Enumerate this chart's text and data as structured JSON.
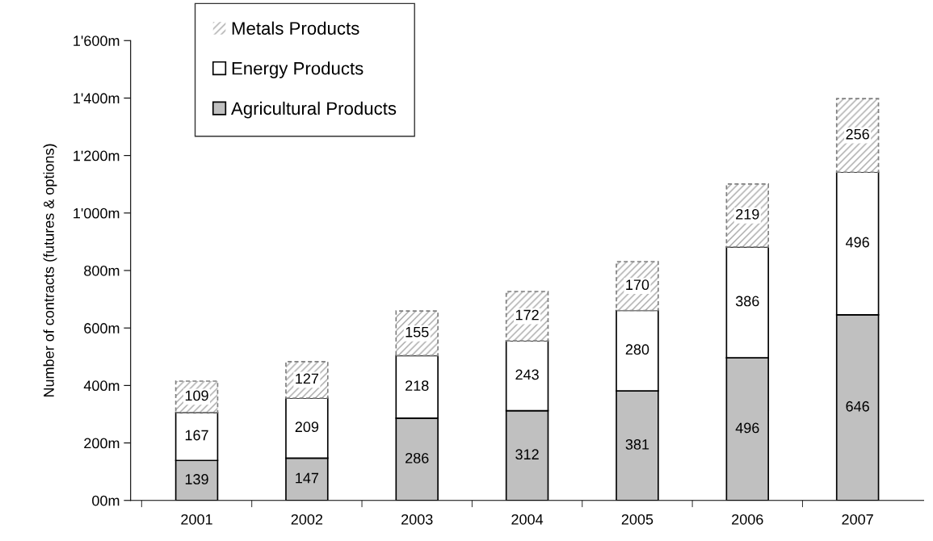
{
  "chart_data": {
    "type": "bar",
    "stacked": true,
    "ylabel": "Number of contracts (futures & options)",
    "categories": [
      "2001",
      "2002",
      "2003",
      "2004",
      "2005",
      "2006",
      "2007"
    ],
    "series": [
      {
        "name": "Agricultural Products",
        "color": "#c0c0c0",
        "values": [
          139,
          147,
          286,
          312,
          381,
          496,
          646
        ]
      },
      {
        "name": "Energy Products",
        "color": "#ffffff",
        "values": [
          167,
          209,
          218,
          243,
          280,
          386,
          496
        ]
      },
      {
        "name": "Metals Products",
        "color": "#a6a6a6",
        "values": [
          109,
          127,
          155,
          172,
          170,
          219,
          256
        ]
      }
    ],
    "ylim": [
      0,
      1600
    ],
    "yticks": [
      {
        "value": 0,
        "label": "00m"
      },
      {
        "value": 200,
        "label": "200m"
      },
      {
        "value": 400,
        "label": "400m"
      },
      {
        "value": 600,
        "label": "600m"
      },
      {
        "value": 800,
        "label": "800m"
      },
      {
        "value": 1000,
        "label": "1'000m"
      },
      {
        "value": 1200,
        "label": "1'200m"
      },
      {
        "value": 1400,
        "label": "1'400m"
      },
      {
        "value": 1600,
        "label": "1'600m"
      }
    ],
    "data_labels": true,
    "grid": false,
    "legend": "top left"
  }
}
